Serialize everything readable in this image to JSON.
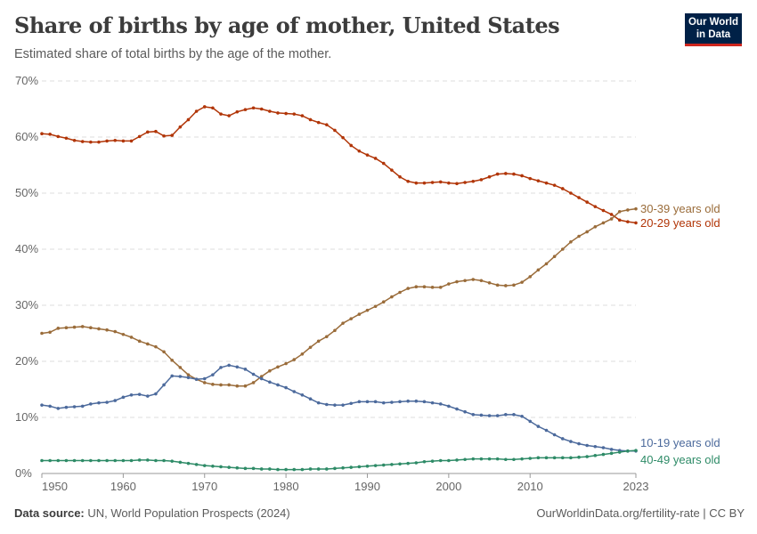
{
  "header": {
    "title": "Share of births by age of mother, United States",
    "subtitle": "Estimated share of total births by the age of the mother.",
    "logo_text": "Our World in Data"
  },
  "footer": {
    "source_label": "Data source:",
    "source_text": "UN, World Population Prospects (2024)",
    "right_text": "OurWorldinData.org/fertility-rate | CC BY"
  },
  "chart_data": {
    "type": "line",
    "title": "Share of births by age of mother, United States",
    "subtitle": "Estimated share of total births by the age of the mother.",
    "xlim": [
      1950,
      2023
    ],
    "ylim": [
      0,
      70
    ],
    "yticks": [
      0,
      10,
      20,
      30,
      40,
      50,
      60,
      70
    ],
    "ytick_labels": [
      "0%",
      "10%",
      "20%",
      "30%",
      "40%",
      "50%",
      "60%",
      "70%"
    ],
    "xticks": [
      1950,
      1960,
      1970,
      1980,
      1990,
      2000,
      2010,
      2023
    ],
    "xtick_labels": [
      "1950",
      "1960",
      "1970",
      "1980",
      "1990",
      "2000",
      "2010",
      "2023"
    ],
    "grid": "horizontal dashed",
    "legend": "inline labels at right end of lines",
    "x_start": 1950,
    "series": [
      {
        "name": "20-29 years old",
        "color": "#b13507",
        "values": [
          60.6,
          60.5,
          60.1,
          59.8,
          59.4,
          59.2,
          59.1,
          59.1,
          59.3,
          59.4,
          59.3,
          59.3,
          60.1,
          60.9,
          61.0,
          60.2,
          60.3,
          61.8,
          63.1,
          64.6,
          65.4,
          65.2,
          64.1,
          63.8,
          64.5,
          64.9,
          65.2,
          65.0,
          64.6,
          64.3,
          64.2,
          64.1,
          63.8,
          63.1,
          62.6,
          62.2,
          61.2,
          59.9,
          58.5,
          57.5,
          56.8,
          56.2,
          55.3,
          54.1,
          52.9,
          52.1,
          51.8,
          51.8,
          51.9,
          52.0,
          51.8,
          51.7,
          51.9,
          52.1,
          52.4,
          52.9,
          53.4,
          53.5,
          53.4,
          53.1,
          52.6,
          52.2,
          51.8,
          51.4,
          50.8,
          50.0,
          49.2,
          48.4,
          47.6,
          46.9,
          46.2,
          45.2,
          44.9,
          44.7
        ]
      },
      {
        "name": "30-39 years old",
        "color": "#9a6c3a",
        "values": [
          25.0,
          25.2,
          25.9,
          26.0,
          26.1,
          26.2,
          26.0,
          25.8,
          25.6,
          25.3,
          24.8,
          24.3,
          23.6,
          23.1,
          22.6,
          21.7,
          20.2,
          18.9,
          17.6,
          16.8,
          16.2,
          15.9,
          15.8,
          15.8,
          15.6,
          15.6,
          16.2,
          17.3,
          18.3,
          19.0,
          19.6,
          20.3,
          21.3,
          22.5,
          23.6,
          24.4,
          25.5,
          26.8,
          27.6,
          28.4,
          29.1,
          29.8,
          30.6,
          31.5,
          32.3,
          33.0,
          33.3,
          33.3,
          33.2,
          33.2,
          33.8,
          34.2,
          34.4,
          34.6,
          34.4,
          34.0,
          33.6,
          33.5,
          33.6,
          34.1,
          35.1,
          36.3,
          37.4,
          38.7,
          40.0,
          41.3,
          42.3,
          43.1,
          44.0,
          44.7,
          45.4,
          46.7,
          47.0,
          47.2
        ]
      },
      {
        "name": "10-19 years old",
        "color": "#4c6a9c",
        "values": [
          12.2,
          12.0,
          11.6,
          11.8,
          11.9,
          12.0,
          12.4,
          12.6,
          12.7,
          13.0,
          13.6,
          14.0,
          14.1,
          13.8,
          14.2,
          15.8,
          17.4,
          17.3,
          17.1,
          16.8,
          16.9,
          17.6,
          18.9,
          19.3,
          19.0,
          18.6,
          17.7,
          16.9,
          16.3,
          15.8,
          15.3,
          14.6,
          14.0,
          13.3,
          12.6,
          12.3,
          12.2,
          12.2,
          12.5,
          12.8,
          12.8,
          12.8,
          12.6,
          12.7,
          12.8,
          12.9,
          12.9,
          12.8,
          12.6,
          12.4,
          12.0,
          11.5,
          11.0,
          10.5,
          10.4,
          10.3,
          10.3,
          10.5,
          10.5,
          10.2,
          9.3,
          8.4,
          7.7,
          6.9,
          6.2,
          5.7,
          5.3,
          5.0,
          4.8,
          4.6,
          4.3,
          4.1,
          4.0,
          4.0
        ]
      },
      {
        "name": "40-49 years old",
        "color": "#2e8b67",
        "values": [
          2.3,
          2.3,
          2.3,
          2.3,
          2.3,
          2.3,
          2.3,
          2.3,
          2.3,
          2.3,
          2.3,
          2.3,
          2.4,
          2.4,
          2.3,
          2.3,
          2.2,
          2.0,
          1.8,
          1.6,
          1.4,
          1.3,
          1.2,
          1.1,
          1.0,
          0.9,
          0.9,
          0.8,
          0.8,
          0.7,
          0.7,
          0.7,
          0.7,
          0.8,
          0.8,
          0.8,
          0.9,
          1.0,
          1.1,
          1.2,
          1.3,
          1.4,
          1.5,
          1.6,
          1.7,
          1.8,
          1.9,
          2.1,
          2.2,
          2.3,
          2.3,
          2.4,
          2.5,
          2.6,
          2.6,
          2.6,
          2.6,
          2.5,
          2.5,
          2.6,
          2.7,
          2.8,
          2.8,
          2.8,
          2.8,
          2.8,
          2.9,
          3.0,
          3.2,
          3.4,
          3.6,
          3.8,
          4.0,
          4.1
        ]
      }
    ]
  }
}
